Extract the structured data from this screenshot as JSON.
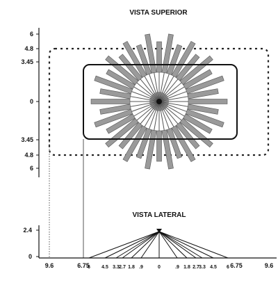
{
  "top_view": {
    "title": "VISTA SUPERIOR",
    "y_ticks": [
      "6",
      "4.8",
      "3.45",
      "0",
      "3.45",
      "4.8",
      "6"
    ],
    "spoke_count": 36
  },
  "side_view": {
    "title": "VISTA LATERAL",
    "y_ticks": [
      "2.4",
      "0"
    ],
    "x_ticks_major": [
      "9.6",
      "6.75",
      "6.75",
      "9.6"
    ],
    "x_ticks_minor": [
      "6",
      "4.5",
      "3.3",
      "2.7",
      "1.8",
      ".9",
      "0",
      ".9",
      "1.8",
      "2.7",
      "3.3",
      "4.5",
      "6"
    ]
  },
  "colors": {
    "line": "#111111",
    "spoke_fill": "#9a9a9a",
    "spoke_stroke": "#555555",
    "core": "#111111"
  }
}
